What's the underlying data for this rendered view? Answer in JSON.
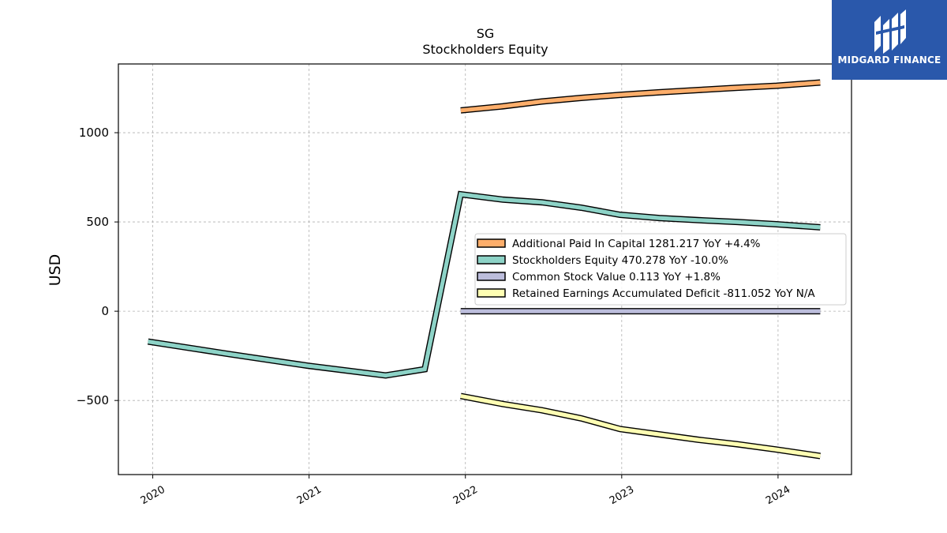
{
  "brand": {
    "name": "MIDGARD FINANCE",
    "bg_color": "#2a58ab",
    "icon": "midgard-logo-icon"
  },
  "chart_data": {
    "type": "line",
    "title": "SG",
    "subtitle": "Stockholders  Equity",
    "xlabel": "",
    "ylabel": "USD",
    "xlim": [
      2019.78,
      2024.47
    ],
    "ylim": [
      -915,
      1385
    ],
    "x_ticks": [
      2020,
      2021,
      2022,
      2023,
      2024
    ],
    "y_ticks": [
      -500,
      0,
      500,
      1000
    ],
    "y_tick_labels": [
      "−500",
      "0",
      "500",
      "1000"
    ],
    "grid": true,
    "legend_position": "center-right",
    "series": [
      {
        "name": "Additional Paid In Capital",
        "legend_label": "Additional Paid In Capital  1281.217 YoY +4.4%",
        "color": "#fdae6b",
        "x": [
          2021.97,
          2022.24,
          2022.49,
          2022.74,
          2022.99,
          2023.24,
          2023.49,
          2023.74,
          2023.99,
          2024.27
        ],
        "values": [
          1125,
          1148,
          1175,
          1195,
          1212,
          1226,
          1239,
          1252,
          1263,
          1281
        ]
      },
      {
        "name": "Stockholders Equity",
        "legend_label": "Stockholders Equity  470.278 YoY -10.0%",
        "color": "#8dd3c7",
        "x": [
          2019.97,
          2020.49,
          2020.99,
          2021.49,
          2021.74,
          2021.97,
          2022.24,
          2022.49,
          2022.74,
          2022.99,
          2023.24,
          2023.49,
          2023.74,
          2023.99,
          2024.27
        ],
        "values": [
          -170,
          -240,
          -305,
          -360,
          -325,
          655,
          625,
          610,
          580,
          540,
          522,
          510,
          500,
          487,
          470
        ]
      },
      {
        "name": "Common Stock Value",
        "legend_label": "Common Stock Value  0.113 YoY +1.8%",
        "color": "#bcbddc",
        "x": [
          2021.97,
          2022.24,
          2022.49,
          2022.74,
          2022.99,
          2023.24,
          2023.49,
          2023.74,
          2023.99,
          2024.27
        ],
        "values": [
          0.11,
          0.11,
          0.11,
          0.11,
          0.111,
          0.111,
          0.112,
          0.112,
          0.112,
          0.113
        ]
      },
      {
        "name": "Retained Earnings Accumulated Deficit",
        "legend_label": "Retained Earnings Accumulated Deficit  -811.052 YoY N/A",
        "color": "#ffffb3",
        "x": [
          2021.97,
          2022.24,
          2022.49,
          2022.74,
          2022.99,
          2023.24,
          2023.49,
          2023.74,
          2023.99,
          2024.27
        ],
        "values": [
          -475,
          -520,
          -555,
          -600,
          -660,
          -690,
          -720,
          -745,
          -775,
          -811
        ]
      }
    ]
  }
}
